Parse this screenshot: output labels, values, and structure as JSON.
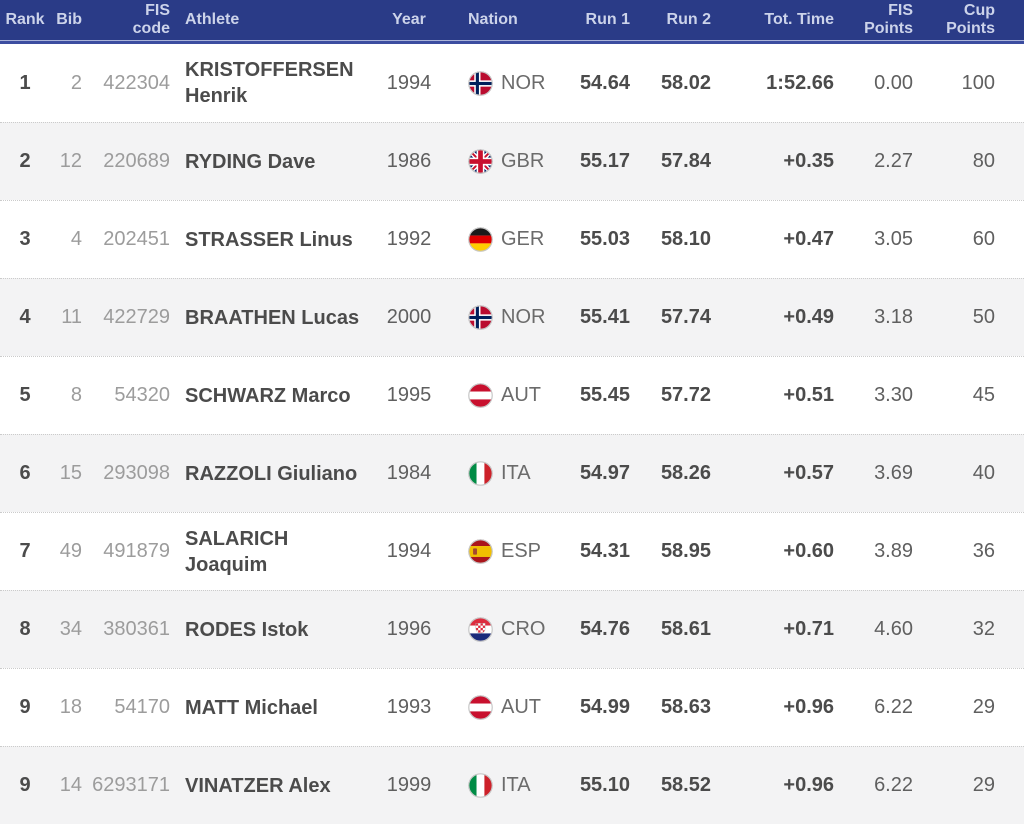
{
  "colors": {
    "header_bg": "#2a3b87",
    "header_text": "#ccd3ea",
    "accent_line": "#3c4da0",
    "row_alt_bg": "#f3f3f4",
    "text_bold": "#4b4b4b",
    "text_regular": "#5f5f5f",
    "text_muted": "#9c9c9c"
  },
  "table": {
    "headers": {
      "rank": "Rank",
      "bib": "Bib",
      "fis_code": "FIS\ncode",
      "athlete": "Athlete",
      "year": "Year",
      "nation": "Nation",
      "run1": "Run 1",
      "run2": "Run 2",
      "total": "Tot. Time",
      "fis_points": "FIS\nPoints",
      "cup_points": "Cup\nPoints"
    },
    "rows": [
      {
        "rank": "1",
        "bib": "2",
        "fis_code": "422304",
        "athlete": "KRISTOFFERSEN Henrik",
        "year": "1994",
        "nation": "NOR",
        "run1": "54.64",
        "run2": "58.02",
        "total": "1:52.66",
        "fis_points": "0.00",
        "cup_points": "100"
      },
      {
        "rank": "2",
        "bib": "12",
        "fis_code": "220689",
        "athlete": "RYDING Dave",
        "year": "1986",
        "nation": "GBR",
        "run1": "55.17",
        "run2": "57.84",
        "total": "+0.35",
        "fis_points": "2.27",
        "cup_points": "80"
      },
      {
        "rank": "3",
        "bib": "4",
        "fis_code": "202451",
        "athlete": "STRASSER Linus",
        "year": "1992",
        "nation": "GER",
        "run1": "55.03",
        "run2": "58.10",
        "total": "+0.47",
        "fis_points": "3.05",
        "cup_points": "60"
      },
      {
        "rank": "4",
        "bib": "11",
        "fis_code": "422729",
        "athlete": "BRAATHEN Lucas",
        "year": "2000",
        "nation": "NOR",
        "run1": "55.41",
        "run2": "57.74",
        "total": "+0.49",
        "fis_points": "3.18",
        "cup_points": "50"
      },
      {
        "rank": "5",
        "bib": "8",
        "fis_code": "54320",
        "athlete": "SCHWARZ Marco",
        "year": "1995",
        "nation": "AUT",
        "run1": "55.45",
        "run2": "57.72",
        "total": "+0.51",
        "fis_points": "3.30",
        "cup_points": "45"
      },
      {
        "rank": "6",
        "bib": "15",
        "fis_code": "293098",
        "athlete": "RAZZOLI Giuliano",
        "year": "1984",
        "nation": "ITA",
        "run1": "54.97",
        "run2": "58.26",
        "total": "+0.57",
        "fis_points": "3.69",
        "cup_points": "40"
      },
      {
        "rank": "7",
        "bib": "49",
        "fis_code": "491879",
        "athlete": "SALARICH Joaquim",
        "year": "1994",
        "nation": "ESP",
        "run1": "54.31",
        "run2": "58.95",
        "total": "+0.60",
        "fis_points": "3.89",
        "cup_points": "36"
      },
      {
        "rank": "8",
        "bib": "34",
        "fis_code": "380361",
        "athlete": "RODES Istok",
        "year": "1996",
        "nation": "CRO",
        "run1": "54.76",
        "run2": "58.61",
        "total": "+0.71",
        "fis_points": "4.60",
        "cup_points": "32"
      },
      {
        "rank": "9",
        "bib": "18",
        "fis_code": "54170",
        "athlete": "MATT Michael",
        "year": "1993",
        "nation": "AUT",
        "run1": "54.99",
        "run2": "58.63",
        "total": "+0.96",
        "fis_points": "6.22",
        "cup_points": "29"
      },
      {
        "rank": "9",
        "bib": "14",
        "fis_code": "6293171",
        "athlete": "VINATZER Alex",
        "year": "1999",
        "nation": "ITA",
        "run1": "55.10",
        "run2": "58.52",
        "total": "+0.96",
        "fis_points": "6.22",
        "cup_points": "29"
      }
    ]
  }
}
